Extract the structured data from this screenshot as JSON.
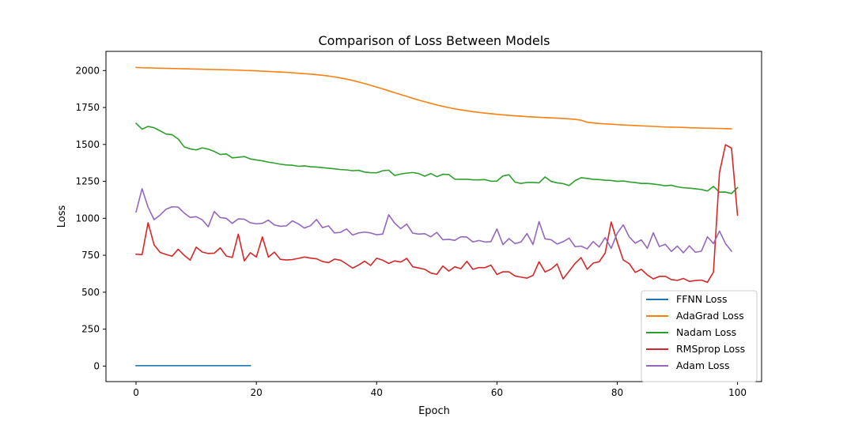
{
  "chart_data": {
    "type": "line",
    "title": "Comparison of Loss Between Models",
    "xlabel": "Epoch",
    "ylabel": "Loss",
    "xlim": [
      -5,
      104
    ],
    "ylim": [
      -105,
      2130
    ],
    "xticks": [
      0,
      20,
      40,
      60,
      80,
      100
    ],
    "yticks": [
      0,
      250,
      500,
      750,
      1000,
      1250,
      1500,
      1750,
      2000
    ],
    "legend_position": "lower-right",
    "grid": false,
    "series": [
      {
        "name": "FFNN Loss",
        "color": "#1f77b4",
        "x_start": 0,
        "values": [
          3,
          3,
          3,
          3,
          3,
          3,
          3,
          3,
          3,
          3,
          3,
          3,
          3,
          3,
          3,
          3,
          3,
          3,
          3,
          3
        ]
      },
      {
        "name": "AdaGrad Loss",
        "color": "#ff7f0e",
        "x_start": 0,
        "values": [
          2021,
          2019,
          2018,
          2017,
          2016,
          2015,
          2014,
          2013,
          2012,
          2011,
          2010,
          2009,
          2008,
          2007,
          2006,
          2005,
          2004,
          2003,
          2001,
          2000,
          1998,
          1996,
          1994,
          1992,
          1990,
          1988,
          1985,
          1982,
          1979,
          1976,
          1972,
          1968,
          1963,
          1957,
          1950,
          1942,
          1933,
          1923,
          1912,
          1900,
          1888,
          1876,
          1863,
          1850,
          1838,
          1825,
          1812,
          1800,
          1789,
          1778,
          1767,
          1758,
          1749,
          1741,
          1734,
          1728,
          1722,
          1717,
          1712,
          1708,
          1704,
          1700,
          1697,
          1694,
          1691,
          1688,
          1686,
          1684,
          1682,
          1680,
          1678,
          1676,
          1673,
          1670,
          1664,
          1650,
          1646,
          1642,
          1639,
          1637,
          1634,
          1632,
          1630,
          1628,
          1626,
          1624,
          1622,
          1620,
          1618,
          1617,
          1616,
          1615,
          1613,
          1612,
          1611,
          1610,
          1609,
          1608,
          1607,
          1606
        ]
      },
      {
        "name": "Nadam Loss",
        "color": "#2ca02c",
        "x_start": 0,
        "values": [
          1643,
          1603,
          1622,
          1613,
          1592,
          1570,
          1566,
          1537,
          1484,
          1470,
          1463,
          1477,
          1468,
          1453,
          1432,
          1436,
          1409,
          1413,
          1418,
          1402,
          1395,
          1389,
          1380,
          1374,
          1366,
          1361,
          1359,
          1352,
          1355,
          1349,
          1347,
          1343,
          1339,
          1335,
          1330,
          1328,
          1322,
          1325,
          1313,
          1309,
          1308,
          1322,
          1326,
          1290,
          1300,
          1306,
          1310,
          1303,
          1285,
          1303,
          1282,
          1298,
          1296,
          1265,
          1264,
          1264,
          1261,
          1260,
          1262,
          1251,
          1252,
          1287,
          1295,
          1245,
          1236,
          1243,
          1243,
          1240,
          1280,
          1250,
          1240,
          1235,
          1222,
          1255,
          1275,
          1270,
          1264,
          1262,
          1258,
          1256,
          1250,
          1253,
          1246,
          1242,
          1236,
          1236,
          1232,
          1227,
          1220,
          1224,
          1213,
          1207,
          1204,
          1200,
          1195,
          1185,
          1216,
          1177,
          1178,
          1168,
          1208
        ]
      },
      {
        "name": "RMSprop Loss",
        "color": "#d62728",
        "x_start": 0,
        "values": [
          757,
          754,
          970,
          821,
          769,
          755,
          744,
          791,
          750,
          717,
          805,
          772,
          762,
          764,
          800,
          745,
          735,
          893,
          712,
          767,
          738,
          874,
          738,
          771,
          722,
          718,
          721,
          729,
          738,
          731,
          726,
          708,
          700,
          724,
          716,
          691,
          663,
          684,
          710,
          681,
          730,
          717,
          695,
          712,
          704,
          729,
          672,
          664,
          655,
          630,
          621,
          677,
          643,
          672,
          659,
          709,
          655,
          667,
          666,
          683,
          620,
          638,
          638,
          610,
          602,
          595,
          614,
          706,
          637,
          656,
          691,
          590,
          642,
          695,
          734,
          655,
          697,
          706,
          766,
          975,
          840,
          718,
          693,
          634,
          655,
          617,
          590,
          607,
          608,
          585,
          580,
          593,
          573,
          579,
          582,
          567,
          637,
          1310,
          1498,
          1475,
          1021
        ]
      },
      {
        "name": "Adam Loss",
        "color": "#9467bd",
        "x_start": 0,
        "values": [
          1043,
          1200,
          1075,
          991,
          1022,
          1062,
          1078,
          1076,
          1036,
          1006,
          1011,
          990,
          943,
          1046,
          1005,
          1000,
          966,
          996,
          994,
          970,
          963,
          966,
          988,
          955,
          946,
          949,
          983,
          962,
          934,
          950,
          992,
          937,
          949,
          901,
          905,
          928,
          887,
          901,
          907,
          901,
          889,
          893,
          1024,
          967,
          930,
          961,
          900,
          893,
          896,
          875,
          905,
          855,
          858,
          851,
          875,
          873,
          840,
          850,
          840,
          842,
          928,
          822,
          863,
          829,
          840,
          897,
          823,
          978,
          861,
          855,
          826,
          842,
          866,
          808,
          812,
          793,
          843,
          806,
          870,
          797,
          899,
          956,
          874,
          832,
          854,
          797,
          902,
          809,
          824,
          776,
          812,
          767,
          814,
          770,
          778,
          875,
          829,
          914,
          829,
          778
        ]
      }
    ]
  }
}
